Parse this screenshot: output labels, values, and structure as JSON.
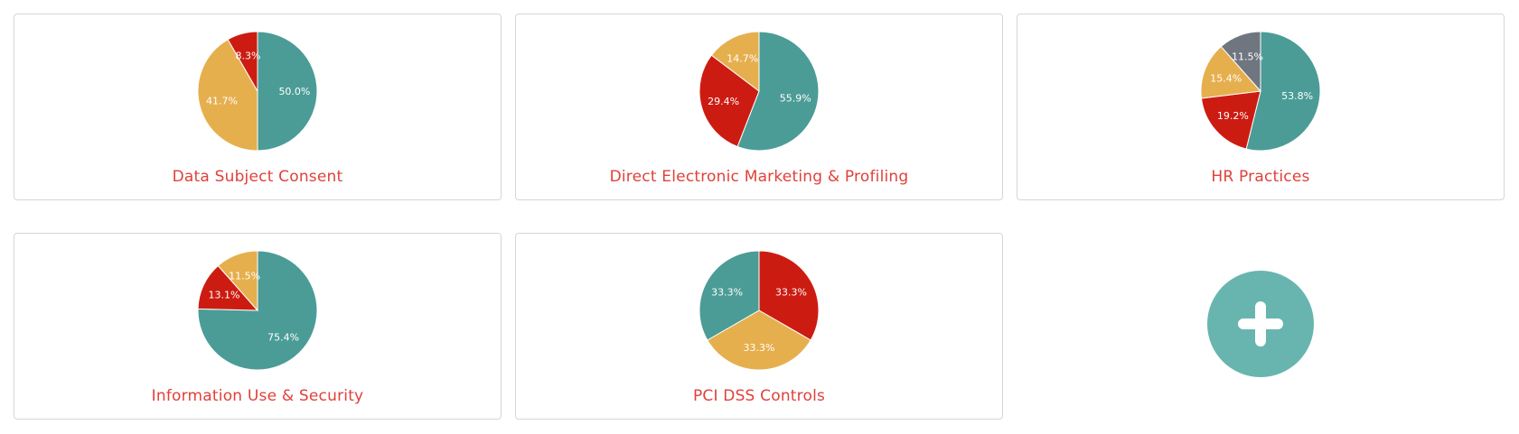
{
  "colors": {
    "teal": "#4b9c96",
    "red": "#cc1c12",
    "yellow": "#e6af4e",
    "gray": "#6f7680",
    "title": "#e0413a",
    "add_button": "#68b5b0"
  },
  "add_card": {
    "icon": "plus-icon"
  },
  "chart_data": [
    {
      "type": "pie",
      "title": "Data Subject Consent",
      "slices": [
        {
          "value": 50.0,
          "label": "50.0%",
          "color": "#4b9c96"
        },
        {
          "value": 41.7,
          "label": "41.7%",
          "color": "#e6af4e"
        },
        {
          "value": 8.3,
          "label": "8.3%",
          "color": "#cc1c12"
        }
      ]
    },
    {
      "type": "pie",
      "title": "Direct Electronic Marketing & Profiling",
      "slices": [
        {
          "value": 55.9,
          "label": "55.9%",
          "color": "#4b9c96"
        },
        {
          "value": 29.4,
          "label": "29.4%",
          "color": "#cc1c12"
        },
        {
          "value": 14.7,
          "label": "14.7%",
          "color": "#e6af4e"
        }
      ]
    },
    {
      "type": "pie",
      "title": "HR Practices",
      "slices": [
        {
          "value": 53.8,
          "label": "53.8%",
          "color": "#4b9c96"
        },
        {
          "value": 19.2,
          "label": "19.2%",
          "color": "#cc1c12"
        },
        {
          "value": 15.4,
          "label": "15.4%",
          "color": "#e6af4e"
        },
        {
          "value": 11.5,
          "label": "11.5%",
          "color": "#6f7680"
        }
      ]
    },
    {
      "type": "pie",
      "title": "Information Use & Security",
      "slices": [
        {
          "value": 75.4,
          "label": "75.4%",
          "color": "#4b9c96"
        },
        {
          "value": 13.1,
          "label": "13.1%",
          "color": "#cc1c12"
        },
        {
          "value": 11.5,
          "label": "11.5%",
          "color": "#e6af4e"
        }
      ]
    },
    {
      "type": "pie",
      "title": "PCI DSS Controls",
      "slices": [
        {
          "value": 33.3,
          "label": "33.3%",
          "color": "#cc1c12"
        },
        {
          "value": 33.3,
          "label": "33.3%",
          "color": "#e6af4e"
        },
        {
          "value": 33.3,
          "label": "33.3%",
          "color": "#4b9c96"
        }
      ]
    }
  ]
}
